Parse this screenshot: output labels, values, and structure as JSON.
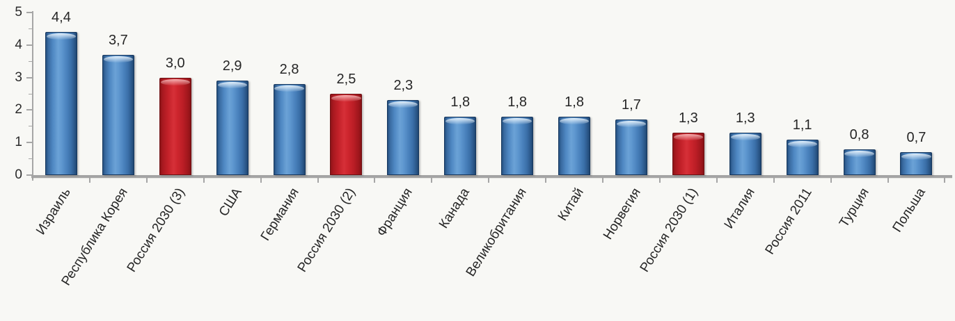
{
  "chart_data": {
    "type": "bar",
    "title": "",
    "xlabel": "",
    "ylabel": "",
    "categories": [
      "Израиль",
      "Республика Корея",
      "Россия 2030 (3)",
      "США",
      "Германия",
      "Россия 2030 (2)",
      "Франция",
      "Канада",
      "Великобритания",
      "Китай",
      "Норвегия",
      "Россия 2030 (1)",
      "Италия",
      "Россия 2011",
      "Турция",
      "Польша"
    ],
    "values": [
      4.4,
      3.7,
      3.0,
      2.9,
      2.8,
      2.5,
      2.3,
      1.8,
      1.8,
      1.8,
      1.7,
      1.3,
      1.3,
      1.1,
      0.8,
      0.7
    ],
    "value_labels": [
      "4,4",
      "3,7",
      "3,0",
      "2,9",
      "2,8",
      "2,5",
      "2,3",
      "1,8",
      "1,8",
      "1,8",
      "1,7",
      "1,3",
      "1,3",
      "1,1",
      "0,8",
      "0,7"
    ],
    "bar_variants": [
      "blue",
      "blue",
      "red",
      "blue",
      "blue",
      "red",
      "blue",
      "blue",
      "blue",
      "blue",
      "blue",
      "red",
      "blue",
      "blue",
      "blue",
      "blue"
    ],
    "ylim": [
      0,
      5
    ],
    "yticks": [
      "0",
      "1",
      "2",
      "3",
      "4",
      "5"
    ],
    "minor_yticks": [
      0.5,
      1.5,
      2.5,
      3.5,
      4.5
    ],
    "grid": false,
    "legend": false,
    "colors": {
      "bar_blue": "#3B74B4",
      "bar_red": "#C2202A",
      "axis": "#A6A6A6",
      "text": "#262626",
      "background": "#F8F8F5"
    }
  }
}
